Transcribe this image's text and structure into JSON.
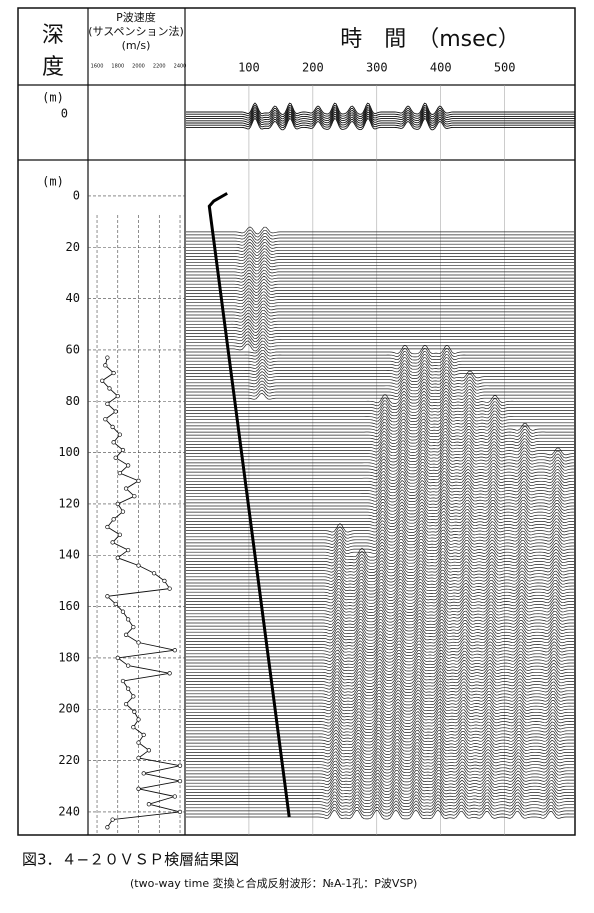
{
  "chart_data": {
    "type": "vsp",
    "title": "図3．４−２０ＶＳＰ検層結果図",
    "subtitle": "(two-way time 変換と合成反射波形：№A-1孔：P波VSP)",
    "depth_label": [
      "深",
      "度"
    ],
    "depth_unit": "(m)",
    "velocity_label": [
      "P波速度",
      "(サスペンション法)",
      "(m/s)"
    ],
    "time_label": "時　間　（msec）",
    "synthetic_depth_tick": 0,
    "ylim": [
      -14,
      249
    ],
    "yticks": [
      0,
      20,
      40,
      60,
      80,
      100,
      120,
      140,
      160,
      180,
      200,
      220,
      240
    ],
    "xlim": [
      0,
      610
    ],
    "xticks": [
      100,
      200,
      300,
      400,
      500
    ],
    "velocity_xlim": [
      1513,
      2448
    ],
    "velocity_xticks": [
      1600,
      1800,
      2000,
      2200,
      2400
    ],
    "velocity_log": {
      "depth": [
        63,
        66,
        69,
        72,
        75,
        78,
        81,
        84,
        87,
        90,
        93,
        96,
        99,
        102,
        105,
        108,
        111,
        114,
        117,
        120,
        123,
        126,
        129,
        132,
        135,
        138,
        141,
        144,
        147,
        150,
        153,
        156,
        159,
        162,
        165,
        168,
        171,
        174,
        177,
        180,
        183,
        186,
        189,
        192,
        195,
        198,
        201,
        204,
        207,
        210,
        213,
        216,
        219,
        222,
        225,
        228,
        231,
        234,
        237,
        240,
        243,
        246
      ],
      "velocity": [
        1700,
        1680,
        1760,
        1650,
        1720,
        1800,
        1700,
        1780,
        1680,
        1750,
        1820,
        1760,
        1850,
        1780,
        1900,
        1820,
        2000,
        1880,
        1960,
        1800,
        1850,
        1760,
        1700,
        1820,
        1750,
        1900,
        1800,
        2000,
        2150,
        2250,
        2300,
        1700,
        1780,
        1850,
        1900,
        1950,
        1880,
        2000,
        2350,
        1800,
        1900,
        2300,
        1850,
        1900,
        1950,
        1880,
        1960,
        2000,
        1950,
        2050,
        2000,
        2100,
        2000,
        2400,
        2050,
        2400,
        2000,
        2350,
        2100,
        2400,
        1750,
        1700
      ]
    },
    "first_arrival": {
      "time": [
        66,
        45,
        38,
        163
      ],
      "depth": [
        -1,
        2,
        4,
        242
      ]
    }
  }
}
